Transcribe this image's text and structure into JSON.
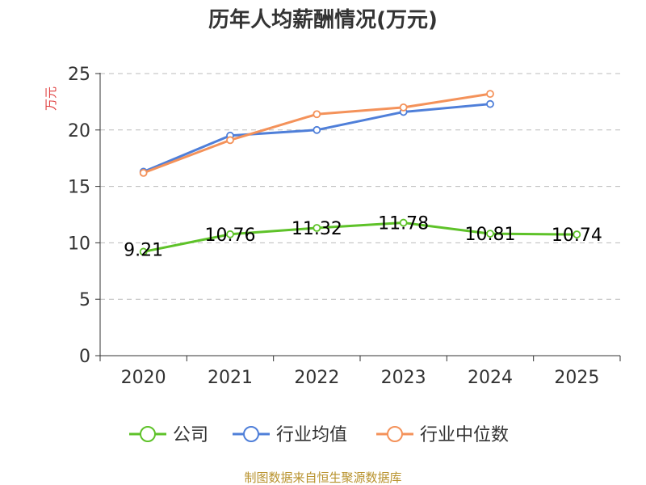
{
  "chart_data": {
    "type": "line",
    "title": "历年人均薪酬情况(万元)",
    "ylabel": "万元",
    "ylim": [
      0,
      25
    ],
    "yticks": [
      0,
      5,
      10,
      15,
      20,
      25
    ],
    "categories": [
      "2020",
      "2021",
      "2022",
      "2023",
      "2024",
      "2025"
    ],
    "series": [
      {
        "name": "公司",
        "color": "#5ec229",
        "values": [
          9.21,
          10.76,
          11.32,
          11.78,
          10.81,
          10.74
        ],
        "labels": [
          "9.21",
          "10.76",
          "11.32",
          "11.78",
          "10.81",
          "10.74"
        ]
      },
      {
        "name": "行业均值",
        "color": "#4f7fd9",
        "values": [
          16.3,
          19.5,
          20.0,
          21.6,
          22.3,
          null
        ]
      },
      {
        "name": "行业中位数",
        "color": "#f4925a",
        "values": [
          16.2,
          19.1,
          21.4,
          22.0,
          23.2,
          null
        ]
      }
    ],
    "grid": true,
    "legend": "bottom"
  },
  "source": "制图数据来自恒生聚源数据库",
  "colors": {
    "axis": "#333333",
    "grid": "#bbbbbb",
    "ylabel": "#e04040",
    "source": "#b8922d"
  }
}
